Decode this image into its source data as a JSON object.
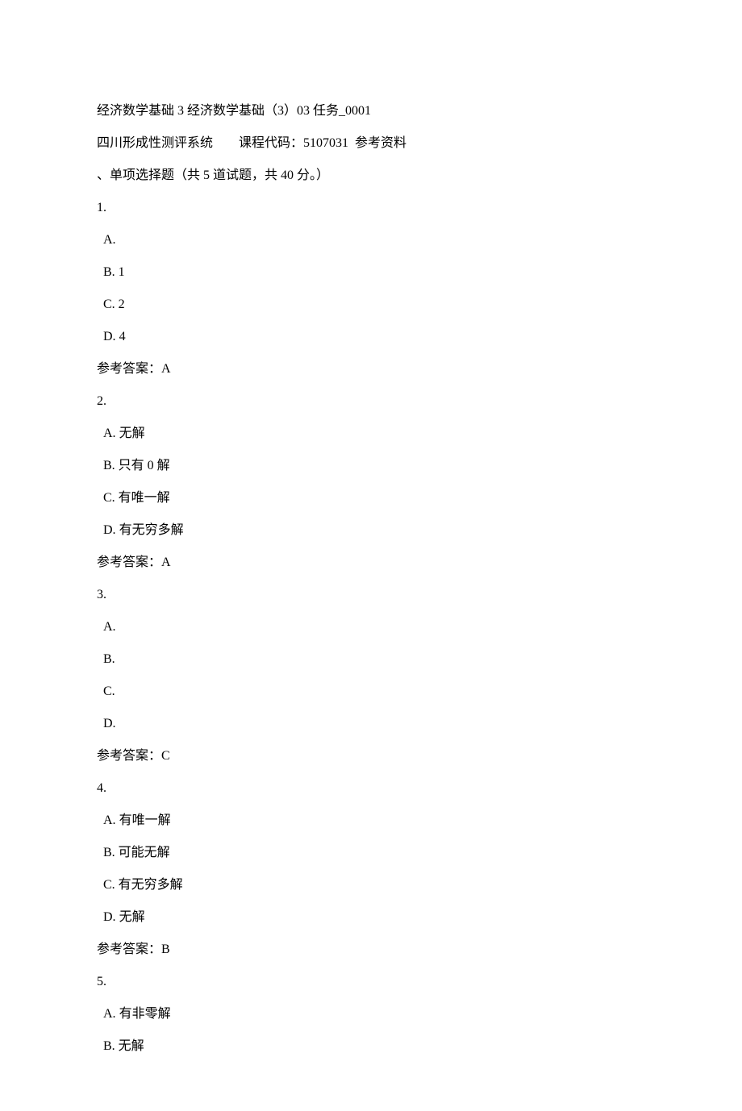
{
  "header": {
    "title": "经济数学基础 3 经济数学基础（3）03 任务_0001",
    "line2_prefix": "四川形成性测评系统",
    "line2_gap": "        ",
    "course_code_label": "课程代码：",
    "course_code": "5107031",
    "reference_label": "  参考资料",
    "section_title": "、单项选择题（共 5 道试题，共 40 分。）"
  },
  "questions": [
    {
      "number": "1.",
      "options": [
        {
          "letter": "A.",
          "text": ""
        },
        {
          "letter": "B.",
          "text": "1"
        },
        {
          "letter": "C.",
          "text": "2"
        },
        {
          "letter": "D.",
          "text": "4"
        }
      ],
      "answer_label": "参考答案：",
      "answer": "A"
    },
    {
      "number": "2.",
      "options": [
        {
          "letter": "A.",
          "text": "无解"
        },
        {
          "letter": "B.",
          "text": "只有 0 解"
        },
        {
          "letter": "C.",
          "text": "有唯一解"
        },
        {
          "letter": "D.",
          "text": "有无穷多解"
        }
      ],
      "answer_label": "参考答案：",
      "answer": "A"
    },
    {
      "number": "3.",
      "options": [
        {
          "letter": "A.",
          "text": ""
        },
        {
          "letter": "B.",
          "text": ""
        },
        {
          "letter": "C.",
          "text": ""
        },
        {
          "letter": "D.",
          "text": ""
        }
      ],
      "answer_label": "参考答案：",
      "answer": "C"
    },
    {
      "number": "4.",
      "options": [
        {
          "letter": "A.",
          "text": "有唯一解"
        },
        {
          "letter": "B.",
          "text": "可能无解"
        },
        {
          "letter": "C.",
          "text": "有无穷多解"
        },
        {
          "letter": "D.",
          "text": "无解"
        }
      ],
      "answer_label": "参考答案：",
      "answer": "B"
    },
    {
      "number": "5.",
      "options": [
        {
          "letter": "A.",
          "text": "有非零解"
        },
        {
          "letter": "B.",
          "text": "无解"
        }
      ],
      "answer_label": "",
      "answer": ""
    }
  ]
}
